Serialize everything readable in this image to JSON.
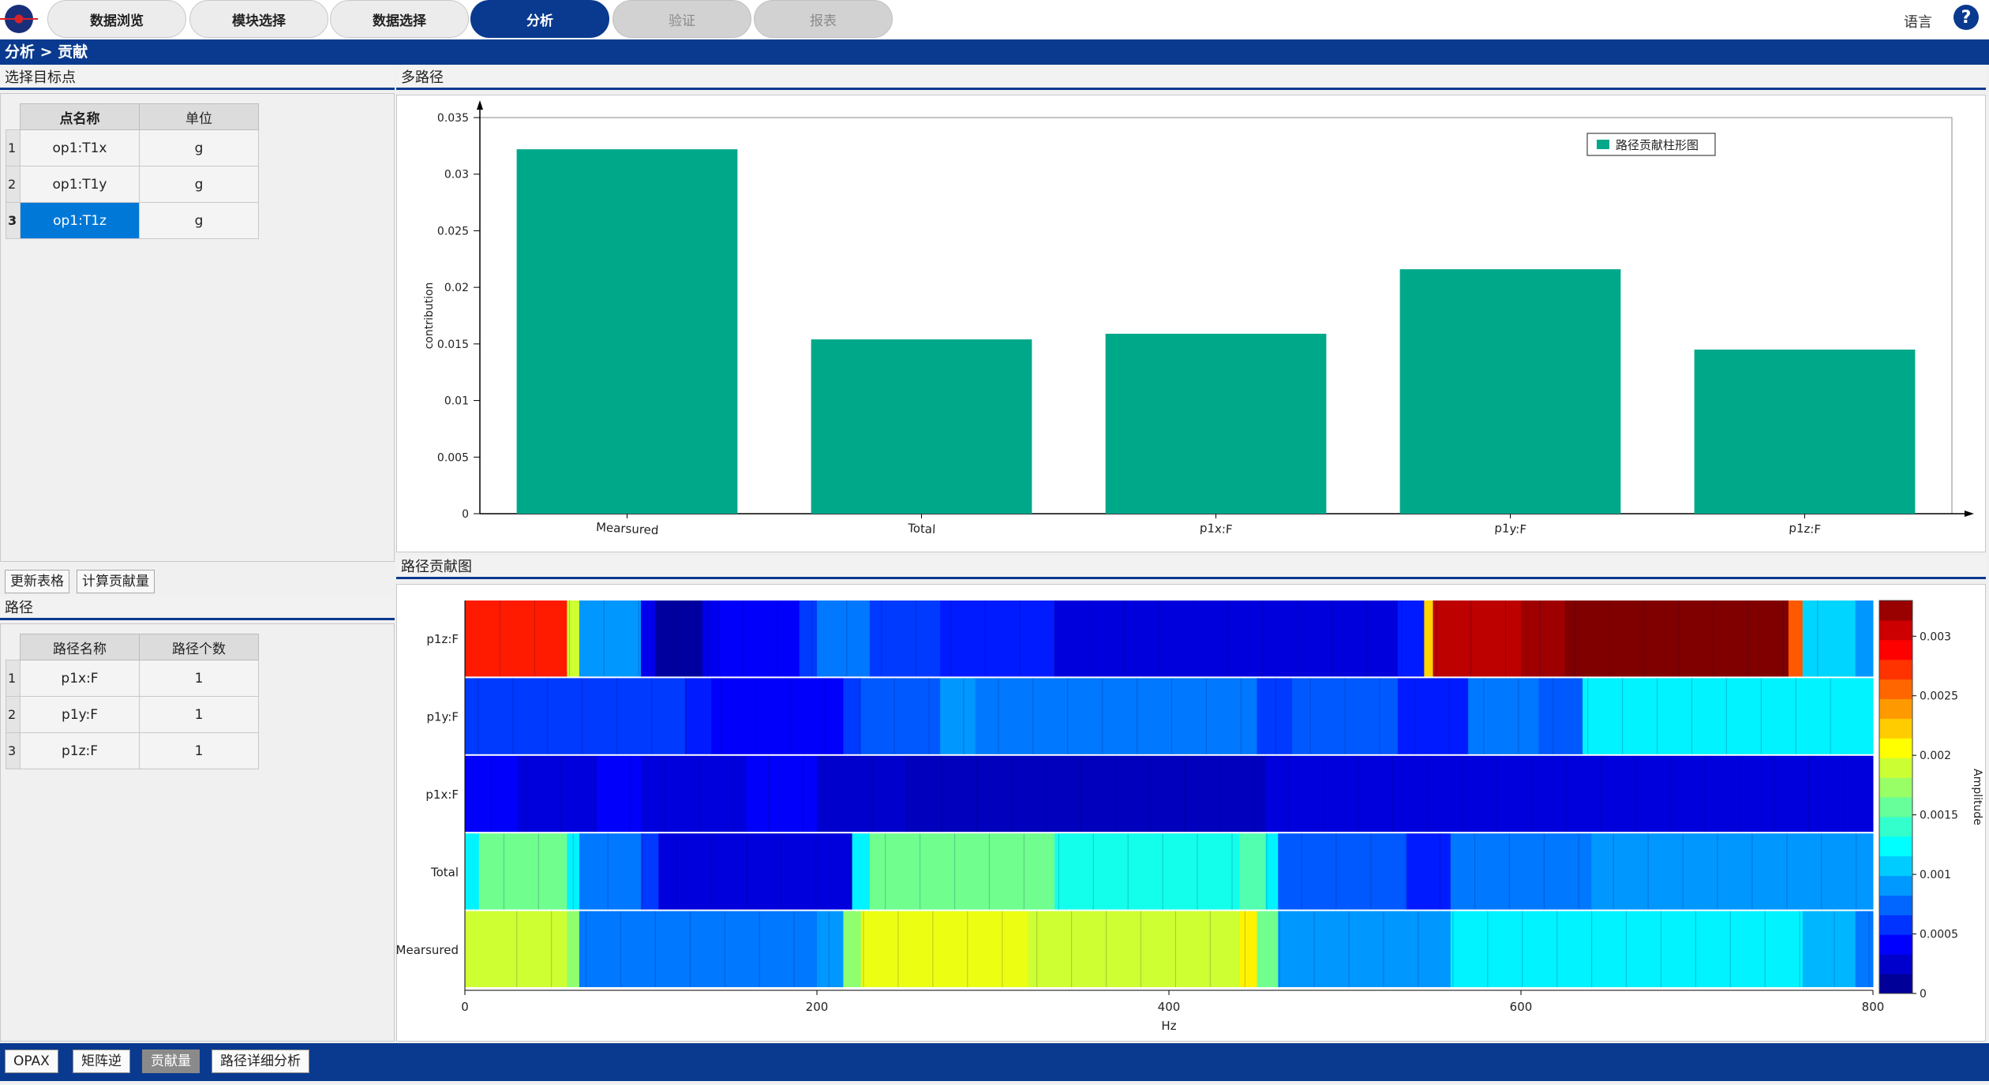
{
  "header": {
    "tabs": [
      {
        "label": "数据浏览",
        "state": "normal"
      },
      {
        "label": "模块选择",
        "state": "normal"
      },
      {
        "label": "数据选择",
        "state": "normal"
      },
      {
        "label": "分析",
        "state": "active"
      },
      {
        "label": "验证",
        "state": "disabled"
      },
      {
        "label": "报表",
        "state": "disabled"
      }
    ],
    "language_label": "语言",
    "help_label": "?"
  },
  "breadcrumb": "分析 > 贡献",
  "left_top": {
    "title": "选择目标点",
    "columns": [
      "点名称",
      "单位"
    ],
    "rows": [
      {
        "index": "1",
        "name": "op1:T1x",
        "unit": "g"
      },
      {
        "index": "2",
        "name": "op1:T1y",
        "unit": "g"
      },
      {
        "index": "3",
        "name": "op1:T1z",
        "unit": "g",
        "selected": true
      }
    ],
    "buttons": {
      "refresh": "更新表格",
      "compute": "计算贡献量"
    }
  },
  "left_bottom": {
    "title": "路径",
    "columns": [
      "路径名称",
      "路径个数"
    ],
    "rows": [
      {
        "index": "1",
        "name": "p1x:F",
        "count": "1"
      },
      {
        "index": "2",
        "name": "p1y:F",
        "count": "1"
      },
      {
        "index": "3",
        "name": "p1z:F",
        "count": "1"
      }
    ]
  },
  "bar_panel_title": "多路径",
  "heat_panel_title": "路径贡献图",
  "colors": {
    "brand": "#0a3a8f",
    "bar": "#00a88a",
    "selected_row": "#0078d7"
  },
  "chart_data": [
    {
      "type": "bar",
      "categories": [
        "Mearsured",
        "Total",
        "p1x:F",
        "p1y:F",
        "p1z:F"
      ],
      "series": [
        {
          "name": "路径贡献柱形图",
          "values": [
            0.0322,
            0.0154,
            0.0159,
            0.0216,
            0.0145
          ]
        }
      ],
      "ylabel": "contribution",
      "ylim": [
        0,
        0.035
      ],
      "yticks": [
        "0",
        "0.005",
        "0.01",
        "0.015",
        "0.02",
        "0.025",
        "0.03",
        "0.035"
      ],
      "legend": "top-right"
    },
    {
      "type": "heatmap",
      "rows": [
        "p1z:F",
        "p1y:F",
        "p1x:F",
        "Total",
        "Mearsured"
      ],
      "x_range": [
        0,
        800
      ],
      "xticks": [
        "0",
        "200",
        "400",
        "600",
        "800"
      ],
      "xlabel": "Hz",
      "colorbar_label": "Amplitude",
      "colorbar_range": [
        0,
        0.0033
      ],
      "colorbar_ticks": [
        "0",
        "0.0005",
        "0.001",
        "0.0015",
        "0.002",
        "0.0025",
        "0.003"
      ],
      "segments": {
        "p1z:F": [
          [
            0,
            58,
            0.0028
          ],
          [
            58,
            65,
            0.0019
          ],
          [
            65,
            100,
            0.0009
          ],
          [
            100,
            108,
            0.00035
          ],
          [
            108,
            135,
            0.0001
          ],
          [
            135,
            145,
            0.00035
          ],
          [
            145,
            190,
            0.0004
          ],
          [
            190,
            200,
            0.0006
          ],
          [
            200,
            230,
            0.0008
          ],
          [
            230,
            270,
            0.0006
          ],
          [
            270,
            335,
            0.0005
          ],
          [
            335,
            400,
            0.0003
          ],
          [
            400,
            530,
            0.0003
          ],
          [
            530,
            545,
            0.0005
          ],
          [
            545,
            550,
            0.0022
          ],
          [
            550,
            565,
            0.0031
          ],
          [
            565,
            600,
            0.0031
          ],
          [
            600,
            625,
            0.0032
          ],
          [
            625,
            700,
            0.0033
          ],
          [
            700,
            752,
            0.0033
          ],
          [
            752,
            760,
            0.0026
          ],
          [
            760,
            790,
            0.0011
          ],
          [
            790,
            800,
            0.0009
          ]
        ],
        "p1y:F": [
          [
            0,
            125,
            0.0006
          ],
          [
            125,
            140,
            0.0005
          ],
          [
            140,
            215,
            0.0004
          ],
          [
            215,
            225,
            0.0006
          ],
          [
            225,
            270,
            0.0007
          ],
          [
            270,
            290,
            0.0009
          ],
          [
            290,
            450,
            0.0008
          ],
          [
            450,
            470,
            0.0006
          ],
          [
            470,
            530,
            0.0007
          ],
          [
            530,
            570,
            0.0005
          ],
          [
            570,
            610,
            0.0008
          ],
          [
            610,
            635,
            0.0007
          ],
          [
            635,
            800,
            0.0012
          ]
        ],
        "p1x:F": [
          [
            0,
            30,
            0.0004
          ],
          [
            30,
            75,
            0.0003
          ],
          [
            75,
            100,
            0.0004
          ],
          [
            100,
            160,
            0.0003
          ],
          [
            160,
            200,
            0.0004
          ],
          [
            200,
            250,
            0.00025
          ],
          [
            250,
            455,
            0.0002
          ],
          [
            455,
            800,
            0.0003
          ]
        ],
        "Total": [
          [
            0,
            8,
            0.0012
          ],
          [
            8,
            58,
            0.0016
          ],
          [
            58,
            65,
            0.0012
          ],
          [
            65,
            100,
            0.0008
          ],
          [
            100,
            110,
            0.0006
          ],
          [
            110,
            220,
            0.0003
          ],
          [
            220,
            230,
            0.0012
          ],
          [
            230,
            335,
            0.0016
          ],
          [
            335,
            440,
            0.0013
          ],
          [
            440,
            455,
            0.0015
          ],
          [
            455,
            462,
            0.0012
          ],
          [
            462,
            535,
            0.0007
          ],
          [
            535,
            560,
            0.0005
          ],
          [
            560,
            640,
            0.0008
          ],
          [
            640,
            655,
            0.0009
          ],
          [
            655,
            715,
            0.0009
          ],
          [
            715,
            800,
            0.0009
          ]
        ],
        "Mearsured": [
          [
            0,
            58,
            0.0019
          ],
          [
            58,
            65,
            0.0017
          ],
          [
            65,
            200,
            0.0008
          ],
          [
            200,
            215,
            0.0009
          ],
          [
            215,
            225,
            0.0017
          ],
          [
            225,
            320,
            0.002
          ],
          [
            320,
            440,
            0.0019
          ],
          [
            440,
            450,
            0.0021
          ],
          [
            450,
            462,
            0.0016
          ],
          [
            462,
            560,
            0.0009
          ],
          [
            560,
            760,
            0.0012
          ],
          [
            760,
            790,
            0.001
          ],
          [
            790,
            800,
            0.0008
          ]
        ]
      }
    }
  ],
  "bottom_tabs": [
    {
      "label": "OPAX",
      "state": "normal"
    },
    {
      "label": "矩阵逆",
      "state": "normal"
    },
    {
      "label": "贡献量",
      "state": "active"
    },
    {
      "label": "路径详细分析",
      "state": "normal"
    }
  ]
}
